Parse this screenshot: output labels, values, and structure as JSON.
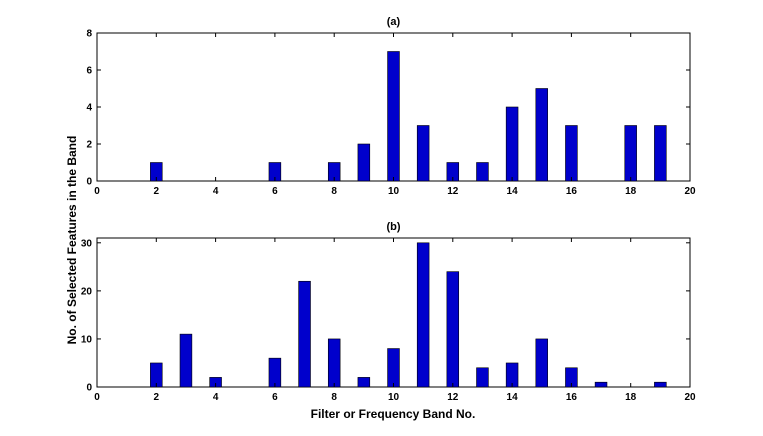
{
  "figure": {
    "ylabel": "No. of Selected Features in the Band",
    "xlabel": "Filter or Frequency Band No.",
    "bar_color": "#0000cc"
  },
  "chart_data": [
    {
      "type": "bar",
      "title": "(a)",
      "x": [
        2,
        6,
        8,
        9,
        10,
        11,
        12,
        13,
        14,
        15,
        16,
        18,
        19
      ],
      "values": [
        1,
        1,
        1,
        2,
        7,
        3,
        1,
        1,
        4,
        5,
        3,
        3,
        3
      ],
      "xlim": [
        0,
        20
      ],
      "ylim": [
        0,
        8
      ],
      "xticks": [
        0,
        2,
        4,
        6,
        8,
        10,
        12,
        14,
        16,
        18,
        20
      ],
      "yticks": [
        0,
        2,
        4,
        6,
        8
      ],
      "xlabel": "",
      "ylabel": ""
    },
    {
      "type": "bar",
      "title": "(b)",
      "x": [
        2,
        3,
        4,
        6,
        7,
        8,
        9,
        10,
        11,
        12,
        13,
        14,
        15,
        16,
        17,
        19
      ],
      "values": [
        5,
        11,
        2,
        6,
        22,
        10,
        2,
        8,
        30,
        24,
        4,
        5,
        10,
        4,
        1,
        1
      ],
      "xlim": [
        0,
        20
      ],
      "ylim": [
        0,
        31
      ],
      "xticks": [
        0,
        2,
        4,
        6,
        8,
        10,
        12,
        14,
        16,
        18,
        20
      ],
      "yticks": [
        0,
        10,
        20,
        30
      ],
      "xlabel": "Filter or Frequency Band No.",
      "ylabel": ""
    }
  ]
}
